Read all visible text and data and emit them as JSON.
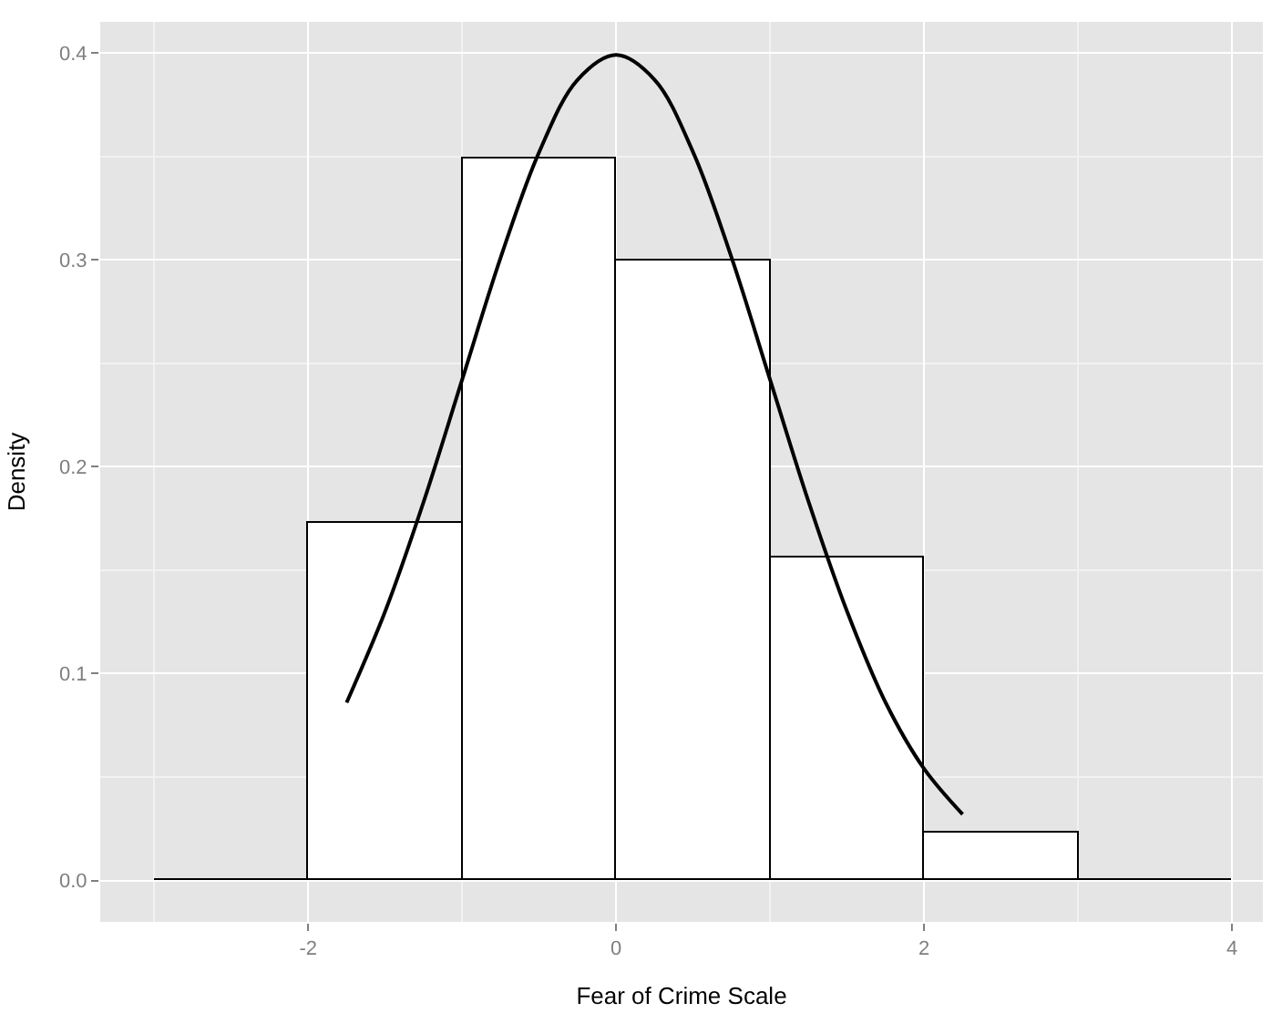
{
  "chart_data": {
    "type": "histogram",
    "xlabel": "Fear of Crime Scale",
    "ylabel": "Density",
    "bins": [
      -3,
      -2,
      -1,
      0,
      1,
      2,
      3,
      4
    ],
    "values": [
      0,
      0.173,
      0.349,
      0.3,
      0.156,
      0.023,
      0
    ],
    "colors": [
      "#000000",
      "#ffffff",
      "#ffffff",
      "#ffffff",
      "#ffffff",
      "#ffffff",
      "#000000"
    ],
    "series": [
      {
        "type": "line",
        "color": "#000000",
        "x": [
          -1.75,
          -1.5,
          -1.25,
          -1.0,
          -0.75,
          -0.5,
          -0.25,
          0.0,
          0.25,
          0.5,
          0.75,
          1.0,
          1.25,
          1.5,
          1.75,
          2.0,
          2.25
        ],
        "values": [
          0.086,
          0.13,
          0.183,
          0.242,
          0.301,
          0.352,
          0.387,
          0.399,
          0.387,
          0.352,
          0.301,
          0.242,
          0.183,
          0.13,
          0.086,
          0.054,
          0.032
        ]
      }
    ],
    "xlim": [
      -3.35,
      4.2
    ],
    "ylim": [
      -0.02,
      0.415
    ],
    "xticks": [
      -2,
      0,
      2,
      4
    ],
    "yticks": [
      {
        "value": 0,
        "label": "0.0"
      },
      0.1,
      0.2,
      0.3,
      0.4
    ],
    "grid": true
  }
}
